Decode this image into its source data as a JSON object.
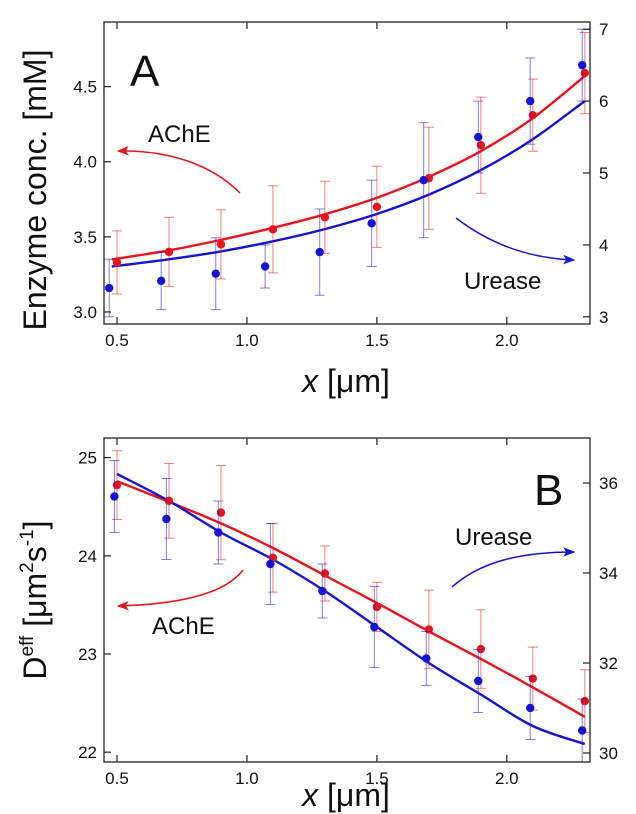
{
  "chart_data": [
    {
      "type": "scatter",
      "panel_letter": "A",
      "xlabel_var": "x",
      "xlabel_unit": "[μm]",
      "ylabel": "Enzyme conc. [mM]",
      "x_ticks": [
        "0.5",
        "1.0",
        "1.5",
        "2.0"
      ],
      "x_tick_values": [
        0.5,
        1.0,
        1.5,
        2.0
      ],
      "xlim": [
        0.45,
        2.32
      ],
      "y_left_ticks": [
        "3.0",
        "3.5",
        "4.0",
        "4.5"
      ],
      "y_left_tick_values": [
        3.0,
        3.5,
        4.0,
        4.5
      ],
      "ylim_left": [
        2.92,
        4.93
      ],
      "y_right_ticks": [
        "3",
        "4",
        "5",
        "6",
        "7"
      ],
      "y_right_tick_values": [
        3,
        4,
        5,
        6,
        7
      ],
      "ylim_right": [
        2.9,
        7.1
      ],
      "series": [
        {
          "name": "AChE",
          "color": "#e8141c",
          "axis": "left",
          "x": [
            0.5,
            0.7,
            0.9,
            1.1,
            1.3,
            1.5,
            1.7,
            1.9,
            2.1,
            2.3
          ],
          "y": [
            3.33,
            3.4,
            3.45,
            3.55,
            3.63,
            3.7,
            3.89,
            4.11,
            4.31,
            4.59
          ],
          "err": [
            0.21,
            0.23,
            0.23,
            0.29,
            0.24,
            0.27,
            0.34,
            0.32,
            0.24,
            0.27
          ],
          "fit_x": [
            0.48,
            0.7,
            0.9,
            1.1,
            1.3,
            1.5,
            1.7,
            1.9,
            2.1,
            2.3
          ],
          "fit_y": [
            3.35,
            3.41,
            3.48,
            3.56,
            3.65,
            3.76,
            3.9,
            4.07,
            4.29,
            4.57
          ]
        },
        {
          "name": "Urease",
          "color": "#1414d2",
          "axis": "right",
          "x": [
            0.47,
            0.67,
            0.88,
            1.07,
            1.28,
            1.48,
            1.68,
            1.89,
            2.09,
            2.29
          ],
          "y": [
            3.4,
            3.5,
            3.6,
            3.7,
            3.9,
            4.3,
            4.9,
            5.5,
            6.0,
            6.5
          ],
          "err": [
            0.4,
            0.4,
            0.5,
            0.3,
            0.6,
            0.6,
            0.8,
            0.5,
            0.6,
            0.5
          ],
          "fit_x": [
            0.48,
            0.7,
            0.9,
            1.1,
            1.3,
            1.5,
            1.7,
            1.9,
            2.1,
            2.3
          ],
          "fit_y": [
            3.7,
            3.8,
            3.91,
            4.05,
            4.22,
            4.43,
            4.7,
            5.04,
            5.47,
            6.0
          ]
        }
      ],
      "annotations": [
        {
          "text": "AChE",
          "color": "#e8141c"
        },
        {
          "text": "Urease",
          "color": "#1414d2"
        }
      ]
    },
    {
      "type": "scatter",
      "panel_letter": "B",
      "xlabel_var": "x",
      "xlabel_unit": "[μm]",
      "ylabel_main": "D",
      "ylabel_sup": "eff",
      "ylabel_unit_open": "[μm",
      "ylabel_unit_sup1": "2",
      "ylabel_unit_mid": "s",
      "ylabel_unit_sup2": "-1",
      "ylabel_unit_close": "]",
      "x_ticks": [
        "0.5",
        "1.0",
        "1.5",
        "2.0"
      ],
      "x_tick_values": [
        0.5,
        1.0,
        1.5,
        2.0
      ],
      "xlim": [
        0.45,
        2.32
      ],
      "y_left_ticks": [
        "22",
        "23",
        "24",
        "25"
      ],
      "y_left_tick_values": [
        22,
        23,
        24,
        25
      ],
      "ylim_left": [
        21.9,
        25.2
      ],
      "y_right_ticks": [
        "30",
        "32",
        "34",
        "36"
      ],
      "y_right_tick_values": [
        30,
        32,
        34,
        36
      ],
      "ylim_right": [
        29.8,
        37.0
      ],
      "series": [
        {
          "name": "AChE",
          "color": "#e8141c",
          "axis": "left",
          "x": [
            0.5,
            0.7,
            0.9,
            1.1,
            1.3,
            1.5,
            1.7,
            1.9,
            2.1,
            2.3
          ],
          "y": [
            24.72,
            24.56,
            24.44,
            23.98,
            23.82,
            23.48,
            23.25,
            23.05,
            22.75,
            22.52
          ],
          "err": [
            0.35,
            0.38,
            0.48,
            0.35,
            0.28,
            0.25,
            0.4,
            0.4,
            0.32,
            0.32
          ],
          "fit_x": [
            0.5,
            0.7,
            0.9,
            1.1,
            1.3,
            1.5,
            1.7,
            1.9,
            2.1,
            2.3
          ],
          "fit_y": [
            24.76,
            24.55,
            24.33,
            24.08,
            23.8,
            23.52,
            23.23,
            22.95,
            22.66,
            22.36
          ]
        },
        {
          "name": "Urease",
          "color": "#1414d2",
          "axis": "right",
          "x": [
            0.49,
            0.69,
            0.89,
            1.09,
            1.29,
            1.49,
            1.69,
            1.89,
            2.09,
            2.29
          ],
          "y": [
            35.7,
            35.2,
            34.9,
            34.2,
            33.6,
            32.8,
            32.1,
            31.6,
            31.0,
            30.5
          ],
          "err": [
            0.8,
            0.9,
            0.7,
            0.9,
            0.6,
            0.9,
            0.6,
            0.7,
            0.7,
            0.7
          ],
          "fit_x": [
            0.5,
            0.7,
            0.9,
            1.1,
            1.3,
            1.5,
            1.7,
            1.9,
            2.1,
            2.3
          ],
          "fit_y": [
            36.2,
            35.6,
            34.9,
            34.3,
            33.6,
            32.8,
            32.0,
            31.3,
            30.6,
            30.2
          ]
        }
      ],
      "annotations": [
        {
          "text": "AChE",
          "color": "#e8141c"
        },
        {
          "text": "Urease",
          "color": "#1414d2"
        }
      ]
    }
  ]
}
